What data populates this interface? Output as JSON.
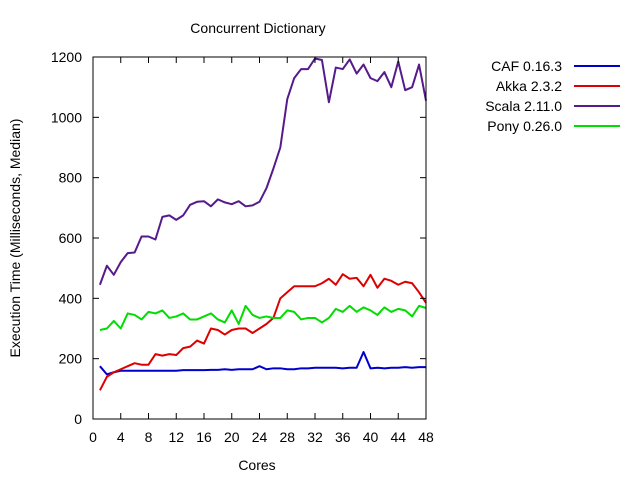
{
  "chart_data": {
    "type": "line",
    "title": "Concurrent Dictionary",
    "xlabel": "Cores",
    "ylabel": "Execution Time (Milliseconds, Median)",
    "xlim": [
      0,
      48
    ],
    "ylim": [
      0,
      1200
    ],
    "xticks": [
      0,
      4,
      8,
      12,
      16,
      20,
      24,
      28,
      32,
      36,
      40,
      44,
      48
    ],
    "yticks": [
      0,
      200,
      400,
      600,
      800,
      1000,
      1200
    ],
    "grid": false,
    "legend_position": "top-right-outside",
    "x": [
      1,
      2,
      3,
      4,
      5,
      6,
      7,
      8,
      9,
      10,
      11,
      12,
      13,
      14,
      15,
      16,
      17,
      18,
      19,
      20,
      21,
      22,
      23,
      24,
      25,
      26,
      27,
      28,
      29,
      30,
      31,
      32,
      33,
      34,
      35,
      36,
      37,
      38,
      39,
      40,
      41,
      42,
      43,
      44,
      45,
      46,
      47,
      48
    ],
    "series": [
      {
        "name": "CAF 0.16.3",
        "color": "#0000cc",
        "values": [
          175,
          148,
          155,
          160,
          160,
          160,
          160,
          160,
          160,
          160,
          160,
          160,
          162,
          162,
          162,
          162,
          163,
          163,
          165,
          163,
          165,
          165,
          165,
          175,
          165,
          168,
          168,
          165,
          165,
          168,
          168,
          170,
          170,
          170,
          170,
          168,
          170,
          170,
          222,
          168,
          170,
          168,
          170,
          170,
          172,
          170,
          172,
          172
        ]
      },
      {
        "name": "Akka 2.3.2",
        "color": "#dd0000",
        "values": [
          95,
          140,
          155,
          165,
          175,
          185,
          180,
          180,
          215,
          210,
          215,
          212,
          235,
          240,
          260,
          250,
          300,
          295,
          280,
          295,
          300,
          300,
          285,
          300,
          315,
          335,
          400,
          420,
          440,
          440,
          440,
          440,
          450,
          465,
          445,
          480,
          465,
          468,
          440,
          478,
          435,
          465,
          458,
          445,
          455,
          450,
          420,
          385
        ]
      },
      {
        "name": "Scala 2.11.0",
        "color": "#551a8b",
        "values": [
          445,
          508,
          478,
          520,
          550,
          552,
          605,
          605,
          595,
          670,
          675,
          660,
          675,
          710,
          720,
          722,
          705,
          728,
          718,
          712,
          722,
          705,
          708,
          720,
          765,
          830,
          900,
          1060,
          1130,
          1160,
          1160,
          1195,
          1190,
          1050,
          1165,
          1160,
          1192,
          1145,
          1175,
          1130,
          1120,
          1150,
          1100,
          1185,
          1090,
          1100,
          1175,
          1055
        ]
      },
      {
        "name": "Pony 0.26.0",
        "color": "#00dd00",
        "values": [
          295,
          300,
          325,
          300,
          350,
          345,
          330,
          355,
          350,
          360,
          335,
          340,
          350,
          330,
          330,
          340,
          350,
          330,
          320,
          360,
          315,
          375,
          345,
          335,
          340,
          335,
          335,
          360,
          355,
          330,
          335,
          335,
          320,
          335,
          365,
          355,
          375,
          355,
          370,
          360,
          345,
          370,
          355,
          365,
          360,
          340,
          375,
          368
        ]
      }
    ]
  }
}
